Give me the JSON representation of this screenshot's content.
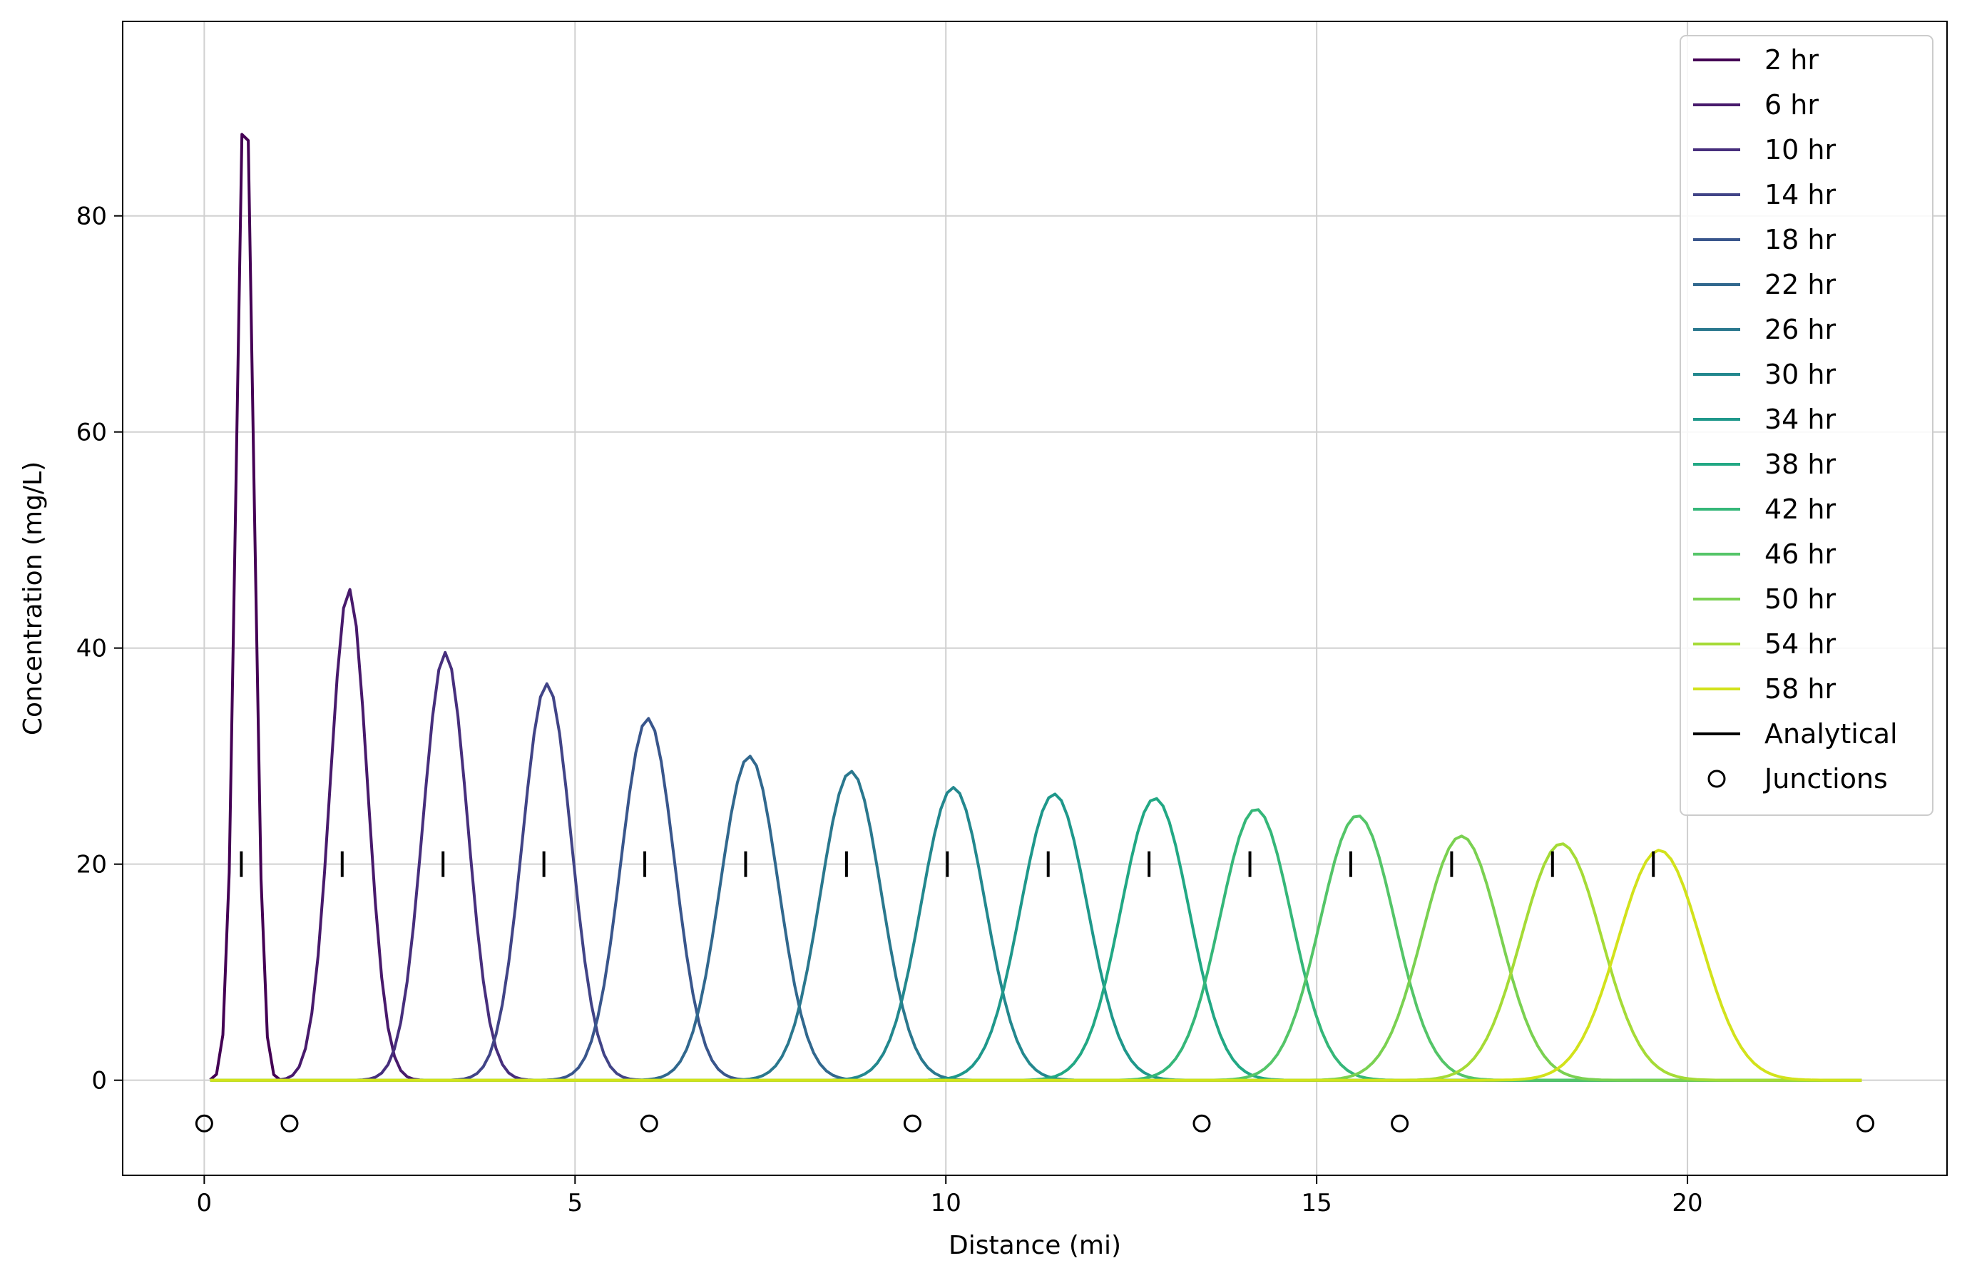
{
  "chart_data": {
    "type": "line",
    "xlabel": "Distance (mi)",
    "ylabel": "Concentration (mg/L)",
    "xlim": [
      -1.1,
      23.5
    ],
    "ylim": [
      -8.8,
      98
    ],
    "xticks": [
      0,
      5,
      10,
      15,
      20
    ],
    "yticks": [
      0,
      20,
      40,
      60,
      80
    ],
    "grid": true,
    "legend_position": "top-right",
    "series": [
      {
        "name": "2 hr",
        "color": "#440154",
        "peak_x": 0.55,
        "peak": 93.0,
        "sigma": 0.12
      },
      {
        "name": "6 hr",
        "color": "#481a6c",
        "peak_x": 1.95,
        "peak": 45.5,
        "sigma": 0.25
      },
      {
        "name": "10 hr",
        "color": "#472f7d",
        "peak_x": 3.25,
        "peak": 39.6,
        "sigma": 0.3
      },
      {
        "name": "14 hr",
        "color": "#414487",
        "peak_x": 4.62,
        "peak": 36.7,
        "sigma": 0.33
      },
      {
        "name": "18 hr",
        "color": "#39568c",
        "peak_x": 5.98,
        "peak": 33.5,
        "sigma": 0.36
      },
      {
        "name": "22 hr",
        "color": "#31688e",
        "peak_x": 7.35,
        "peak": 30.0,
        "sigma": 0.39
      },
      {
        "name": "26 hr",
        "color": "#2a788e",
        "peak_x": 8.72,
        "peak": 28.6,
        "sigma": 0.41
      },
      {
        "name": "30 hr",
        "color": "#23888e",
        "peak_x": 10.1,
        "peak": 27.1,
        "sigma": 0.43
      },
      {
        "name": "34 hr",
        "color": "#1f988b",
        "peak_x": 11.46,
        "peak": 26.5,
        "sigma": 0.45
      },
      {
        "name": "38 hr",
        "color": "#22a884",
        "peak_x": 12.82,
        "peak": 26.1,
        "sigma": 0.46
      },
      {
        "name": "42 hr",
        "color": "#35b779",
        "peak_x": 14.18,
        "peak": 25.1,
        "sigma": 0.48
      },
      {
        "name": "46 hr",
        "color": "#54c568",
        "peak_x": 15.55,
        "peak": 24.5,
        "sigma": 0.5
      },
      {
        "name": "50 hr",
        "color": "#7ad151",
        "peak_x": 16.95,
        "peak": 22.6,
        "sigma": 0.52
      },
      {
        "name": "54 hr",
        "color": "#a5db36",
        "peak_x": 18.3,
        "peak": 21.9,
        "sigma": 0.54
      },
      {
        "name": "58 hr",
        "color": "#d2e21b",
        "peak_x": 19.62,
        "peak": 21.3,
        "sigma": 0.56
      }
    ],
    "curve_x_range": [
      0.08,
      22.35
    ],
    "analytical": {
      "name": "Analytical",
      "color": "#000000",
      "x": [
        0.5,
        1.86,
        3.22,
        4.58,
        5.94,
        7.3,
        8.66,
        10.02,
        11.38,
        12.74,
        14.1,
        15.46,
        16.82,
        18.18,
        19.54
      ],
      "y": [
        20,
        20,
        20,
        20,
        20,
        20,
        20,
        20,
        20,
        20,
        20,
        20,
        20,
        20,
        20
      ]
    },
    "junctions": {
      "name": "Junctions",
      "x": [
        0.0,
        1.15,
        6.0,
        9.55,
        13.45,
        16.12,
        22.4
      ],
      "y": [
        -4,
        -4,
        -4,
        -4,
        -4,
        -4,
        -4
      ]
    }
  }
}
